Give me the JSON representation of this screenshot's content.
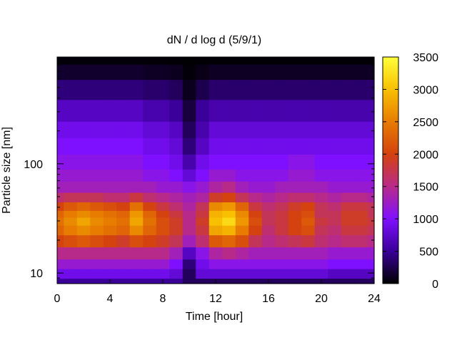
{
  "chart_data": {
    "type": "heatmap",
    "title": "dN / d log d (5/9/1)",
    "xlabel": "Time [hour]",
    "ylabel": "Particle size [nm]",
    "xlim": [
      0,
      24
    ],
    "ylim": [
      8,
      950
    ],
    "y_scale": "log",
    "x_ticks": [
      0,
      4,
      8,
      12,
      16,
      20,
      24
    ],
    "x_tick_labels": [
      "0",
      "4",
      "8",
      "12",
      "16",
      "20",
      "24"
    ],
    "y_ticks": [
      10,
      100
    ],
    "y_tick_labels": [
      "10",
      "100"
    ],
    "colorbar": {
      "range": [
        0,
        3500
      ],
      "ticks": [
        0,
        500,
        1000,
        1500,
        2000,
        2500,
        3000,
        3500
      ],
      "tick_labels": [
        "0",
        "500",
        "1000",
        "1500",
        "2000",
        "2500",
        "3000",
        "3500"
      ],
      "colormap": "gnuplot-rgbformulae-7-5-15",
      "stops": [
        "#000000",
        "#3a0099",
        "#7f10ff",
        "#b82a8a",
        "#d4420f",
        "#e77c00",
        "#f8c000",
        "#ffff3a"
      ]
    },
    "times_hour": [
      0,
      1,
      2,
      3,
      4,
      5,
      6,
      7,
      8,
      9,
      10,
      11,
      12,
      13,
      14,
      15,
      16,
      17,
      18,
      19,
      20,
      21,
      22,
      23,
      24
    ],
    "sizes_nm": [
      8,
      10,
      12,
      15,
      20,
      25,
      30,
      35,
      40,
      50,
      60,
      80,
      100,
      150,
      200,
      300,
      500,
      700,
      950
    ],
    "rows_by_size": [
      [
        500,
        500,
        500,
        500,
        500,
        500,
        500,
        500,
        500,
        500,
        300,
        300,
        300,
        300,
        300,
        300,
        300,
        300,
        300,
        300,
        300,
        300,
        300,
        300,
        300
      ],
      [
        900,
        900,
        900,
        900,
        900,
        900,
        900,
        900,
        900,
        800,
        300,
        800,
        800,
        800,
        800,
        800,
        800,
        800,
        800,
        800,
        800,
        700,
        700,
        700,
        700
      ],
      [
        1200,
        1200,
        1200,
        1200,
        1200,
        1200,
        1200,
        1200,
        1200,
        1000,
        400,
        900,
        1100,
        1100,
        1100,
        1100,
        1100,
        1100,
        1100,
        1100,
        1100,
        1000,
        1000,
        1000,
        1000
      ],
      [
        1500,
        1500,
        1500,
        1500,
        1500,
        1500,
        1500,
        1500,
        1500,
        1300,
        700,
        1100,
        1400,
        1500,
        1400,
        1300,
        1300,
        1300,
        1300,
        1300,
        1300,
        1200,
        1200,
        1200,
        1200
      ],
      [
        2000,
        2100,
        2200,
        2100,
        2000,
        1900,
        2100,
        2000,
        1900,
        1700,
        1300,
        1600,
        2200,
        2300,
        2100,
        1700,
        1500,
        1600,
        1700,
        1800,
        1600,
        1500,
        1600,
        1600,
        1500
      ],
      [
        2300,
        2500,
        2600,
        2500,
        2400,
        2300,
        2600,
        2300,
        2100,
        1900,
        1500,
        1800,
        2800,
        2900,
        2500,
        2000,
        1600,
        1800,
        2000,
        2100,
        1700,
        1600,
        1800,
        1800,
        1700
      ],
      [
        2400,
        2600,
        2800,
        2600,
        2500,
        2400,
        2800,
        2400,
        2100,
        1900,
        1500,
        1900,
        3000,
        3200,
        2700,
        2100,
        1700,
        1800,
        2000,
        2200,
        1800,
        1700,
        1900,
        1900,
        1800
      ],
      [
        2300,
        2500,
        2600,
        2500,
        2400,
        2300,
        2700,
        2300,
        2000,
        1800,
        1500,
        1800,
        2900,
        3000,
        2600,
        2000,
        1700,
        1800,
        2000,
        2100,
        1700,
        1700,
        1900,
        1900,
        1700
      ],
      [
        2000,
        2200,
        2300,
        2200,
        2100,
        2000,
        2400,
        2000,
        1800,
        1600,
        1400,
        1700,
        2600,
        2700,
        2300,
        1800,
        1600,
        1700,
        1900,
        2000,
        1700,
        1600,
        1800,
        1800,
        1700
      ],
      [
        1600,
        1700,
        1700,
        1700,
        1600,
        1600,
        1800,
        1600,
        1500,
        1400,
        1300,
        1400,
        1900,
        2000,
        1700,
        1500,
        1400,
        1500,
        1600,
        1600,
        1500,
        1400,
        1500,
        1500,
        1400
      ],
      [
        1300,
        1300,
        1300,
        1300,
        1300,
        1300,
        1300,
        1300,
        1200,
        1200,
        1100,
        1200,
        1400,
        1500,
        1300,
        1200,
        1200,
        1300,
        1300,
        1300,
        1300,
        1200,
        1200,
        1200,
        1200
      ],
      [
        1200,
        1200,
        1200,
        1200,
        1200,
        1200,
        1200,
        1100,
        1100,
        1000,
        800,
        1000,
        1200,
        1200,
        1100,
        1100,
        1100,
        1100,
        1200,
        1200,
        1100,
        1100,
        1100,
        1100,
        1100
      ],
      [
        1100,
        1100,
        1100,
        1100,
        1100,
        1100,
        1100,
        1000,
        1000,
        900,
        600,
        900,
        1000,
        1000,
        1000,
        1000,
        1000,
        1000,
        1100,
        1100,
        1000,
        1000,
        1000,
        1000,
        1000
      ],
      [
        1000,
        1000,
        1000,
        1000,
        1000,
        1000,
        1000,
        900,
        900,
        800,
        400,
        700,
        900,
        900,
        900,
        900,
        900,
        900,
        900,
        900,
        900,
        900,
        900,
        900,
        900
      ],
      [
        900,
        900,
        900,
        900,
        900,
        900,
        900,
        800,
        800,
        700,
        300,
        600,
        800,
        800,
        800,
        800,
        800,
        800,
        800,
        800,
        800,
        800,
        800,
        800,
        800
      ],
      [
        700,
        700,
        700,
        700,
        700,
        700,
        700,
        600,
        600,
        500,
        200,
        500,
        600,
        600,
        600,
        600,
        600,
        600,
        600,
        600,
        600,
        600,
        600,
        600,
        600
      ],
      [
        400,
        400,
        400,
        400,
        400,
        400,
        400,
        350,
        350,
        300,
        100,
        250,
        350,
        350,
        350,
        350,
        350,
        350,
        350,
        350,
        350,
        350,
        350,
        350,
        350
      ],
      [
        150,
        150,
        150,
        150,
        150,
        150,
        150,
        120,
        120,
        100,
        30,
        80,
        120,
        120,
        120,
        120,
        120,
        120,
        120,
        120,
        120,
        120,
        120,
        120,
        120
      ],
      [
        30,
        30,
        30,
        30,
        30,
        30,
        30,
        25,
        25,
        20,
        10,
        15,
        20,
        20,
        20,
        20,
        20,
        20,
        20,
        20,
        20,
        20,
        20,
        20,
        20
      ]
    ]
  }
}
